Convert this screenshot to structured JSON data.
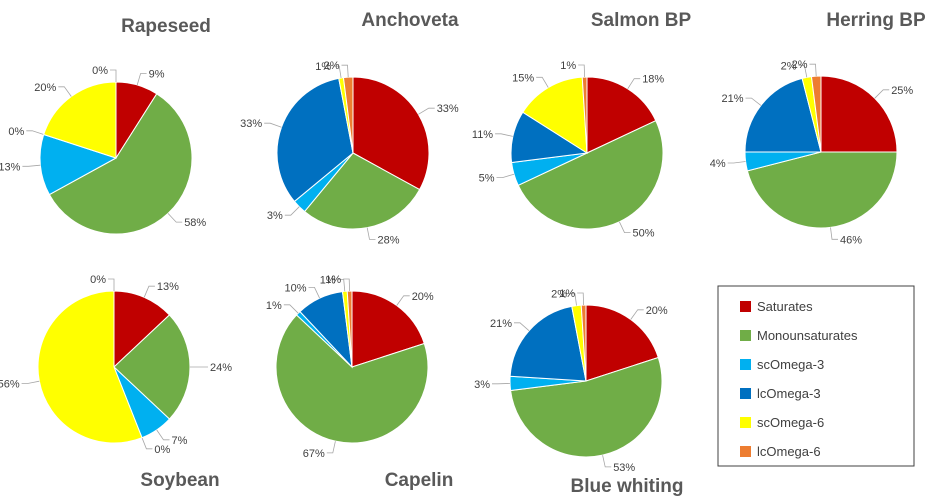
{
  "chart_data": {
    "type": "pie",
    "categories": [
      "Saturates",
      "Monounsaturates",
      "scOmega-3",
      "lcOmega-3",
      "scOmega-6",
      "lcOmega-6"
    ],
    "colors": [
      "#c00000",
      "#70ad47",
      "#00b0f0",
      "#0070c0",
      "#ffff00",
      "#ed7d31"
    ],
    "legend_position": "bottom-right",
    "charts": [
      {
        "title": "Rapeseed",
        "values": [
          9,
          58,
          13,
          0,
          20,
          0
        ],
        "labels": [
          "9%",
          "58%",
          "13%",
          "0%",
          "20%",
          "0%"
        ]
      },
      {
        "title": "Anchoveta",
        "values": [
          33,
          28,
          3,
          33,
          1,
          2
        ],
        "labels": [
          "33%",
          "28%",
          "3%",
          "33%",
          "1%",
          "2%"
        ]
      },
      {
        "title": "Salmon BP",
        "values": [
          18,
          50,
          5,
          11,
          15,
          1
        ],
        "labels": [
          "18%",
          "50%",
          "5%",
          "11%",
          "15%",
          "1%"
        ]
      },
      {
        "title": "Herring BP",
        "values": [
          25,
          46,
          4,
          21,
          2,
          2
        ],
        "labels": [
          "25%",
          "46%",
          "4%",
          "21%",
          "2%",
          "2%"
        ]
      },
      {
        "title": "Soybean",
        "values": [
          13,
          24,
          7,
          0,
          56,
          0
        ],
        "labels": [
          "13%",
          "24%",
          "7%",
          "0%",
          "56%",
          "0%"
        ]
      },
      {
        "title": "Capelin",
        "values": [
          20,
          67,
          1,
          10,
          1,
          1
        ],
        "labels": [
          "20%",
          "67%",
          "1%",
          "10%",
          "1%",
          "1%"
        ]
      },
      {
        "title": "Blue whiting",
        "values": [
          20,
          53,
          3,
          21,
          2,
          1
        ],
        "labels": [
          "20%",
          "53%",
          "3%",
          "21%",
          "2%",
          "1%"
        ]
      }
    ]
  }
}
